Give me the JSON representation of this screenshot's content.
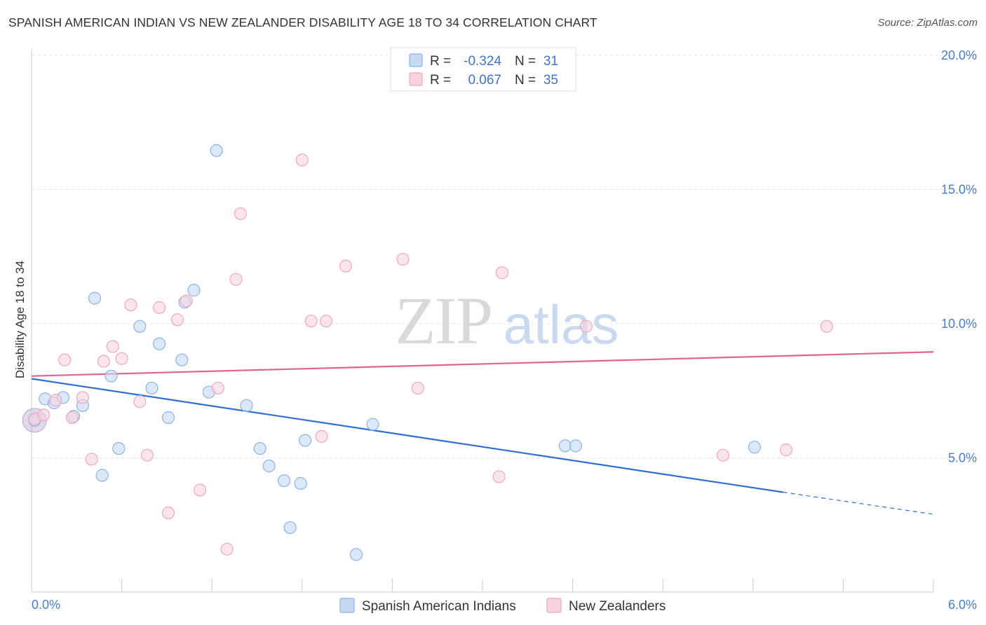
{
  "title": "SPANISH AMERICAN INDIAN VS NEW ZEALANDER DISABILITY AGE 18 TO 34 CORRELATION CHART",
  "source": "Source: ZipAtlas.com",
  "watermark": {
    "zip": "ZIP",
    "atlas": "atlas"
  },
  "chart_data": {
    "type": "scatter",
    "ylabel": "Disability Age 18 to 34",
    "xlim": [
      0,
      6
    ],
    "ylim": [
      0,
      20
    ],
    "x_tick_labels": [
      "0.0%",
      "6.0%"
    ],
    "y_ticks": [
      5,
      10,
      15,
      20
    ],
    "y_tick_labels": [
      "5.0%",
      "10.0%",
      "15.0%",
      "20.0%"
    ],
    "legend": [
      {
        "r_label": "R =",
        "r_value": "-0.324",
        "n_label": "N =",
        "n_value": "31"
      },
      {
        "r_label": "R =",
        "r_value": "0.067",
        "n_label": "N =",
        "n_value": "35"
      }
    ],
    "series": [
      {
        "name": "Spanish American Indians",
        "color": "#8ab4e8",
        "fill": "#c5d9f3",
        "line_color": "#2f6fd1",
        "trend": {
          "x0": 0.0,
          "y0": 7.95,
          "x1": 5.0,
          "y1": 3.72,
          "x_dash_end": 6.0,
          "y_dash_end": 2.9
        },
        "points": [
          {
            "x": 0.02,
            "y": 6.4
          },
          {
            "x": 0.09,
            "y": 7.2
          },
          {
            "x": 0.15,
            "y": 7.05
          },
          {
            "x": 0.21,
            "y": 7.25
          },
          {
            "x": 0.28,
            "y": 6.55
          },
          {
            "x": 0.34,
            "y": 6.95
          },
          {
            "x": 0.42,
            "y": 10.95
          },
          {
            "x": 0.47,
            "y": 4.35
          },
          {
            "x": 0.53,
            "y": 8.05
          },
          {
            "x": 0.58,
            "y": 5.35
          },
          {
            "x": 0.72,
            "y": 9.9
          },
          {
            "x": 0.8,
            "y": 7.6
          },
          {
            "x": 0.85,
            "y": 9.25
          },
          {
            "x": 0.91,
            "y": 6.5
          },
          {
            "x": 1.0,
            "y": 8.65
          },
          {
            "x": 1.02,
            "y": 10.8
          },
          {
            "x": 1.08,
            "y": 11.25
          },
          {
            "x": 1.18,
            "y": 7.45
          },
          {
            "x": 1.23,
            "y": 16.45
          },
          {
            "x": 1.43,
            "y": 6.95
          },
          {
            "x": 1.52,
            "y": 5.35
          },
          {
            "x": 1.58,
            "y": 4.7
          },
          {
            "x": 1.68,
            "y": 4.15
          },
          {
            "x": 1.72,
            "y": 2.4
          },
          {
            "x": 1.79,
            "y": 4.05
          },
          {
            "x": 1.82,
            "y": 5.65
          },
          {
            "x": 2.16,
            "y": 1.4
          },
          {
            "x": 2.27,
            "y": 6.25
          },
          {
            "x": 3.55,
            "y": 5.45
          },
          {
            "x": 3.62,
            "y": 5.45
          },
          {
            "x": 4.81,
            "y": 5.4
          }
        ]
      },
      {
        "name": "New Zealanders",
        "color": "#f0a8bd",
        "fill": "#f8d3df",
        "line_color": "#e0648c",
        "trend": {
          "x0": 0.0,
          "y0": 8.05,
          "x1": 6.0,
          "y1": 8.95
        },
        "points": [
          {
            "x": 0.02,
            "y": 6.45
          },
          {
            "x": 0.08,
            "y": 6.6
          },
          {
            "x": 0.16,
            "y": 7.15
          },
          {
            "x": 0.22,
            "y": 8.65
          },
          {
            "x": 0.27,
            "y": 6.5
          },
          {
            "x": 0.34,
            "y": 7.25
          },
          {
            "x": 0.4,
            "y": 4.95
          },
          {
            "x": 0.48,
            "y": 8.6
          },
          {
            "x": 0.54,
            "y": 9.15
          },
          {
            "x": 0.6,
            "y": 8.7
          },
          {
            "x": 0.66,
            "y": 10.7
          },
          {
            "x": 0.72,
            "y": 7.1
          },
          {
            "x": 0.77,
            "y": 5.1
          },
          {
            "x": 0.85,
            "y": 10.6
          },
          {
            "x": 0.91,
            "y": 2.95
          },
          {
            "x": 0.97,
            "y": 10.15
          },
          {
            "x": 1.03,
            "y": 10.85
          },
          {
            "x": 1.12,
            "y": 3.8
          },
          {
            "x": 1.24,
            "y": 7.6
          },
          {
            "x": 1.3,
            "y": 1.6
          },
          {
            "x": 1.36,
            "y": 11.65
          },
          {
            "x": 1.39,
            "y": 14.1
          },
          {
            "x": 1.8,
            "y": 16.1
          },
          {
            "x": 1.86,
            "y": 10.1
          },
          {
            "x": 1.96,
            "y": 10.1
          },
          {
            "x": 1.93,
            "y": 5.8
          },
          {
            "x": 2.09,
            "y": 12.15
          },
          {
            "x": 2.47,
            "y": 12.4
          },
          {
            "x": 2.57,
            "y": 7.6
          },
          {
            "x": 3.13,
            "y": 11.9
          },
          {
            "x": 3.11,
            "y": 4.3
          },
          {
            "x": 3.69,
            "y": 9.9
          },
          {
            "x": 4.6,
            "y": 5.1
          },
          {
            "x": 5.02,
            "y": 5.3
          },
          {
            "x": 5.29,
            "y": 9.9
          }
        ]
      }
    ]
  }
}
